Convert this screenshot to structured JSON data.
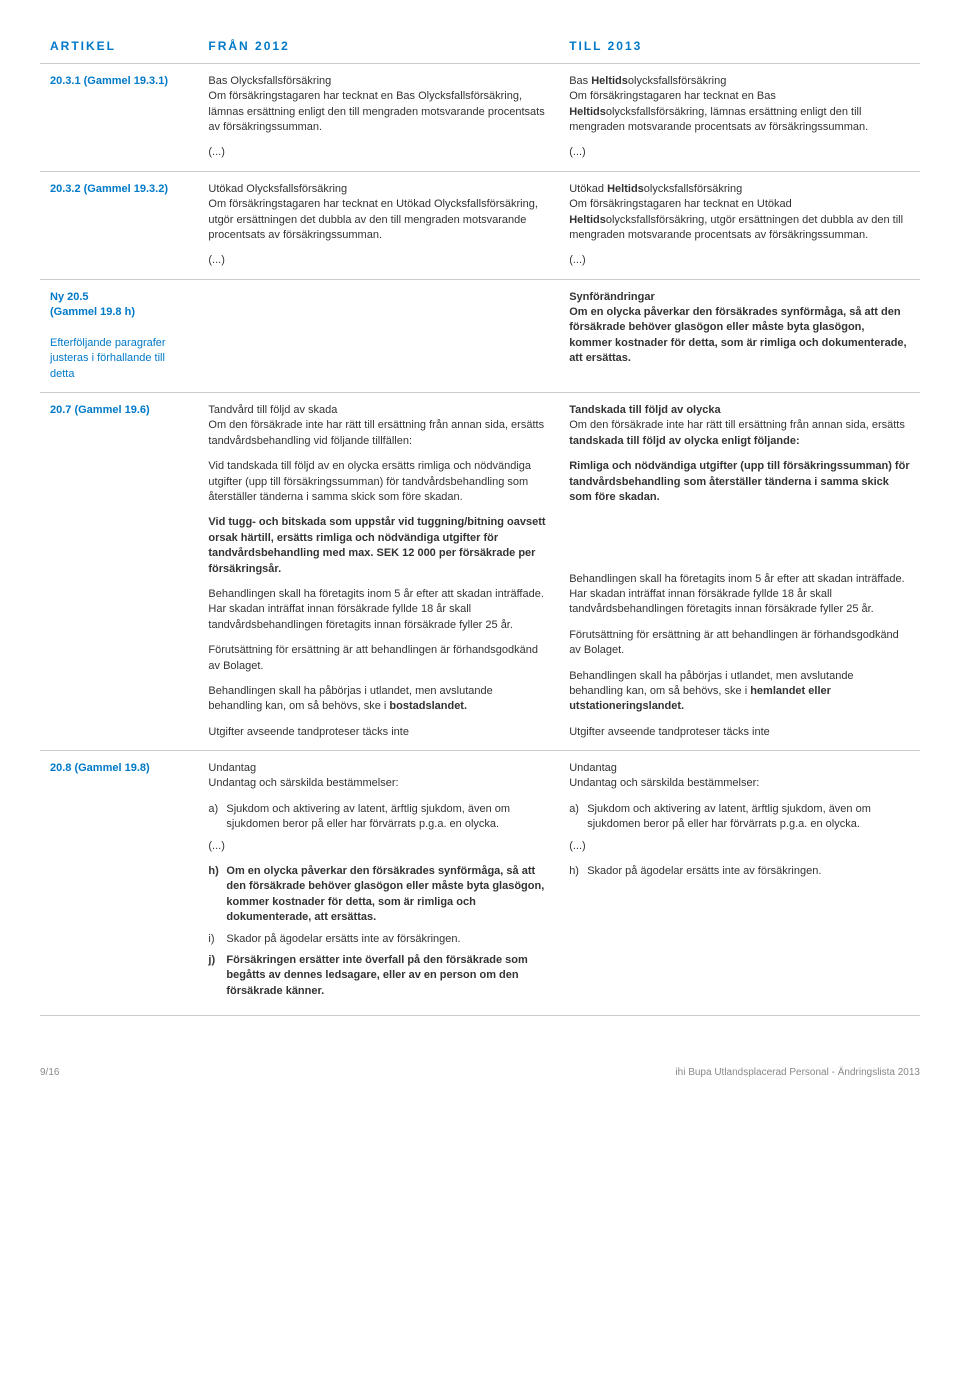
{
  "header": {
    "col1": "ARTIKEL",
    "col2": "FRÅN 2012",
    "col3": "TILL 2013"
  },
  "rows": [
    {
      "artikel": "20.3.1 (Gammel 19.3.1)",
      "from": {
        "p1_title": "Bas Olycksfallsförsäkring",
        "p1_body": "Om försäkringstagaren har tecknat en Bas Olycksfallsförsäkring, lämnas ersättning enligt den till mengraden motsvarande procentsats av försäkringssumman.",
        "p2": "(...)"
      },
      "to": {
        "p1_title_a": "Bas ",
        "p1_title_b": "Heltids",
        "p1_title_c": "olycksfallsförsäkring",
        "p1_body_a": "Om försäkringstagaren har tecknat en Bas ",
        "p1_body_b": "Heltids",
        "p1_body_c": "olycksfallsförsäkring, lämnas ersättning enligt den till mengraden motsvarande procentsats av försäkringssumman.",
        "p2": "(...)"
      }
    },
    {
      "artikel": "20.3.2 (Gammel 19.3.2)",
      "from": {
        "p1_title": "Utökad Olycksfallsförsäkring",
        "p1_body": "Om försäkringstagaren har tecknat en Utökad Olycksfallsförsäkring, utgör ersättningen det dubbla av den till mengraden motsvarande procentsats av försäkringssumman.",
        "p2": "(...)"
      },
      "to": {
        "p1_title_a": "Utökad ",
        "p1_title_b": "Heltids",
        "p1_title_c": "olycksfallsförsäkring",
        "p1_body_a": "Om försäkringstagaren har tecknat en Utökad ",
        "p1_body_b": "Heltids",
        "p1_body_c": "olycksfallsförsäkring, utgör ersättningen det dubbla av den till mengraden motsvarande procentsats av försäkringssumman.",
        "p2": "(...)"
      }
    },
    {
      "artikel_l1": "Ny 20.5",
      "artikel_l2": "(Gammel 19.8 h)",
      "artikel_note": "Efterföljande paragrafer justeras i förhallande till detta",
      "from": {},
      "to": {
        "p1_title": "Synförändringar",
        "p1_body": "Om en olycka påverkar den försäkrades synförmåga, så att den försäkrade behöver glasögon eller måste byta glasögon, kommer kostnader för detta, som är rimliga och dokumenterade, att ersättas."
      }
    },
    {
      "artikel": "20.7 (Gammel 19.6)",
      "from": {
        "p1_title": "Tandvård till följd av skada",
        "p1_body": "Om den försäkrade inte har rätt till ersättning från annan sida, ersätts tandvårdsbehandling vid följande tillfällen:",
        "p2": "Vid tandskada till följd av en olycka ersätts rimliga och nödvändiga utgifter (upp till försäkringssumman) för tandvårdsbehandling som återställer tänderna i samma skick som före skadan.",
        "p3": "Vid tugg- och bitskada som uppstår vid tuggning/bitning oavsett orsak härtill, ersätts rimliga och nödvändiga utgifter för tandvårdsbehandling med max. SEK 12 000 per försäkrade per försäkringsår.",
        "p4": "Behandlingen skall ha företagits inom 5 år efter att skadan inträffade. Har skadan inträffat innan försäkrade fyllde 18 år skall tandvårdsbehandlingen företagits innan försäkrade fyller 25 år.",
        "p5": "Förutsättning för ersättning är att behandlingen är förhandsgodkänd av Bolaget.",
        "p6_a": "Behandlingen skall ha påbörjas i utlandet, men avslutande behandling kan, om så behövs, ske i ",
        "p6_b": "bostadslandet.",
        "p7": "Utgifter avseende tandproteser täcks inte"
      },
      "to": {
        "p1_title": "Tandskada till följd av olycka",
        "p1_body_a": "Om den försäkrade inte har rätt till ersättning från annan sida, ersätts ",
        "p1_body_b": "tandskada till följd av olycka enligt följande:",
        "p2_a": "Rimliga och nödvändiga utgifter (upp till försäkringssumman) för tandvårdsbehandling som återställer tänderna i samma skick som före skadan.",
        "p4": "Behandlingen skall ha företagits inom 5 år efter att skadan inträffade. Har skadan inträffat innan försäkrade fyllde 18 år skall tandvårdsbehandlingen företagits innan försäkrade fyller 25 år.",
        "p5": "Förutsättning för ersättning är att behandlingen är förhandsgodkänd av Bolaget.",
        "p6_a": "Behandlingen skall ha påbörjas i utlandet, men avslutande behandling kan, om så behövs, ske i ",
        "p6_b": "hemlandet eller utstationeringslandet.",
        "p7": "Utgifter avseende tandproteser täcks inte"
      }
    },
    {
      "artikel": "20.8 (Gammel 19.8)",
      "from": {
        "p1_title": "Undantag",
        "p1_body": "Undantag och särskilda bestämmelser:",
        "a_lbl": "a)",
        "a_txt": "Sjukdom och aktivering av latent, ärftlig sjukdom, även om sjukdomen beror på eller har förvärrats p.g.a. en olycka.",
        "ell": "(...)",
        "h_lbl": "h)",
        "h_txt": "Om en olycka påverkar den försäkrades synförmåga, så att den försäkrade behöver glasögon eller måste byta glasögon, kommer kostnader för detta, som är rimliga och dokumenterade, att ersättas.",
        "i_lbl": "i)",
        "i_txt": "Skador på ägodelar ersätts inte av försäkringen.",
        "j_lbl": "j)",
        "j_txt": "Försäkringen ersätter inte överfall på den försäkrade som begåtts av dennes ledsagare, eller av en person om den försäkrade känner."
      },
      "to": {
        "p1_title": "Undantag",
        "p1_body": "Undantag och särskilda bestämmelser:",
        "a_lbl": "a)",
        "a_txt": "Sjukdom och aktivering av latent, ärftlig sjukdom, även om sjukdomen beror på eller har förvärrats p.g.a. en olycka.",
        "ell": "(...)",
        "h_lbl": "h)",
        "h_txt": "Skador på ägodelar ersätts inte av försäkringen."
      }
    }
  ],
  "footer": {
    "left": "9/16",
    "right": "ihi Bupa Utlandsplacerad Personal - Ändringslista 2013"
  }
}
